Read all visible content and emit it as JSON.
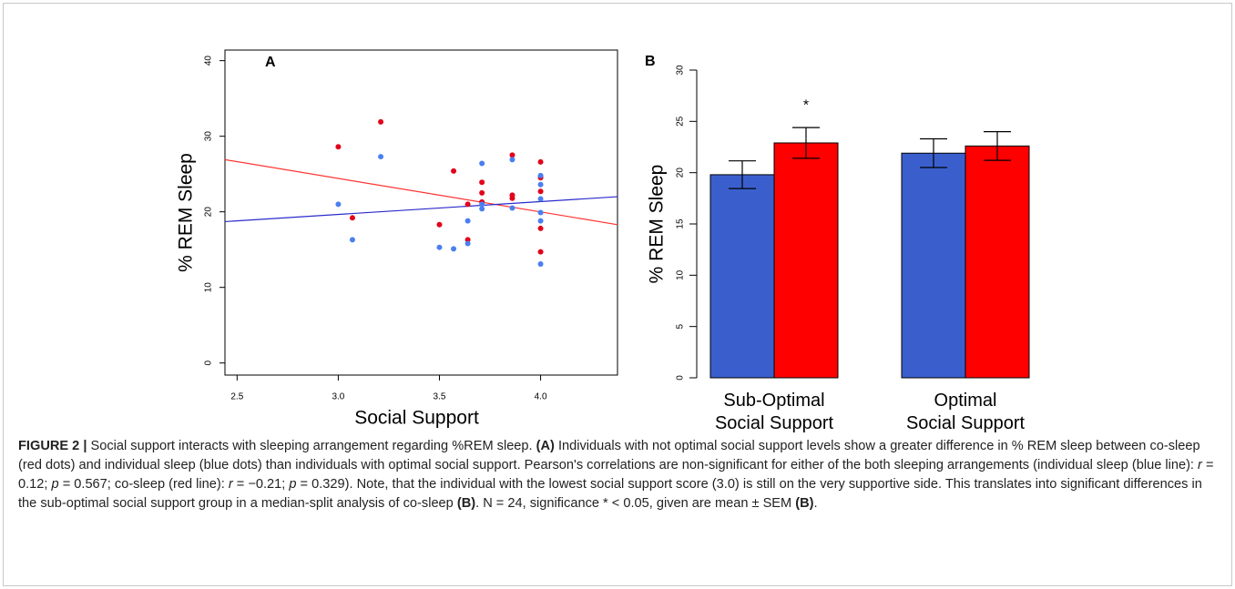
{
  "chart_data": [
    {
      "type": "scatter",
      "panel": "A",
      "x_label": "Social Support",
      "y_label": "% REM Sleep",
      "xlim": [
        2.44,
        4.38
      ],
      "ylim": [
        -1.6,
        41.4
      ],
      "xticks": [
        2.5,
        {
          "value": 3,
          "label": "3.0"
        },
        3.5,
        {
          "value": 4,
          "label": "4.0"
        }
      ],
      "yticks": [
        0,
        10,
        20,
        30,
        40
      ],
      "series": [
        {
          "color": "#e3001a",
          "x": [
            3.0,
            3.07,
            3.21,
            3.5,
            3.57,
            3.64,
            3.64,
            3.71,
            3.71,
            3.71,
            3.86,
            3.86,
            3.86,
            4.0,
            4.0,
            4.0,
            4.0,
            4.0,
            4.0
          ],
          "values": [
            28.6,
            19.2,
            31.9,
            18.3,
            25.4,
            16.3,
            21.0,
            23.9,
            22.5,
            21.3,
            22.2,
            21.8,
            27.5,
            26.6,
            24.7,
            24.5,
            22.7,
            17.8,
            14.7
          ]
        },
        {
          "color": "#4a7ff0",
          "x": [
            3.0,
            3.07,
            3.21,
            3.5,
            3.57,
            3.64,
            3.64,
            3.71,
            3.71,
            3.71,
            3.86,
            3.86,
            4.0,
            4.0,
            4.0,
            4.0,
            4.0,
            4.0
          ],
          "values": [
            21.0,
            16.3,
            27.3,
            15.3,
            15.1,
            15.8,
            18.8,
            26.4,
            21.0,
            20.4,
            26.9,
            20.5,
            24.8,
            21.7,
            19.9,
            18.8,
            13.1,
            23.6
          ]
        }
      ],
      "lines": [
        {
          "color": "#ff3333",
          "x": [
            2.44,
            4.38
          ],
          "values": [
            26.9,
            18.3
          ]
        },
        {
          "color": "#2a2acc",
          "x": [
            2.44,
            4.38
          ],
          "values": [
            18.7,
            22.0
          ]
        }
      ]
    },
    {
      "type": "bar",
      "panel": "B",
      "y_label": "% REM Sleep",
      "categories": [
        "Sub-Optimal\nSocial Support",
        "Optimal\nSocial Support"
      ],
      "ylim": [
        0,
        30
      ],
      "yticks": [
        0,
        5,
        10,
        15,
        20,
        25,
        30
      ],
      "series": [
        {
          "color": "#3a5fcd",
          "values": [
            19.8,
            21.9
          ],
          "errors": [
            1.35,
            1.4
          ]
        },
        {
          "color": "#ff0000",
          "values": [
            22.9,
            22.6
          ],
          "errors": [
            1.5,
            1.4
          ]
        }
      ],
      "annotation": "*"
    }
  ],
  "caption": [
    "FIGURE 2 |",
    " Social support interacts with sleeping arrangement regarding %REM sleep. ",
    "(A)",
    " Individuals with not optimal social support levels show a greater difference in % REM sleep between co-sleep (red dots) and individual sleep (blue dots) than individuals with optimal social support. Pearson's correlations are non-significant for either of the both sleeping arrangements (individual sleep (blue line): ",
    "r",
    " = 0.12; ",
    "p",
    " = 0.567; co-sleep (red line): ",
    "r",
    " = −0.21; ",
    "p",
    " = 0.329). Note, that the individual with the lowest social support score (3.0) is still on the very supportive side. This translates into significant differences in the sub-optimal social support group in a median-split analysis of co-sleep ",
    "(B)",
    ". N = 24, significance * < 0.05, given are mean ± SEM ",
    "(B)",
    "."
  ]
}
